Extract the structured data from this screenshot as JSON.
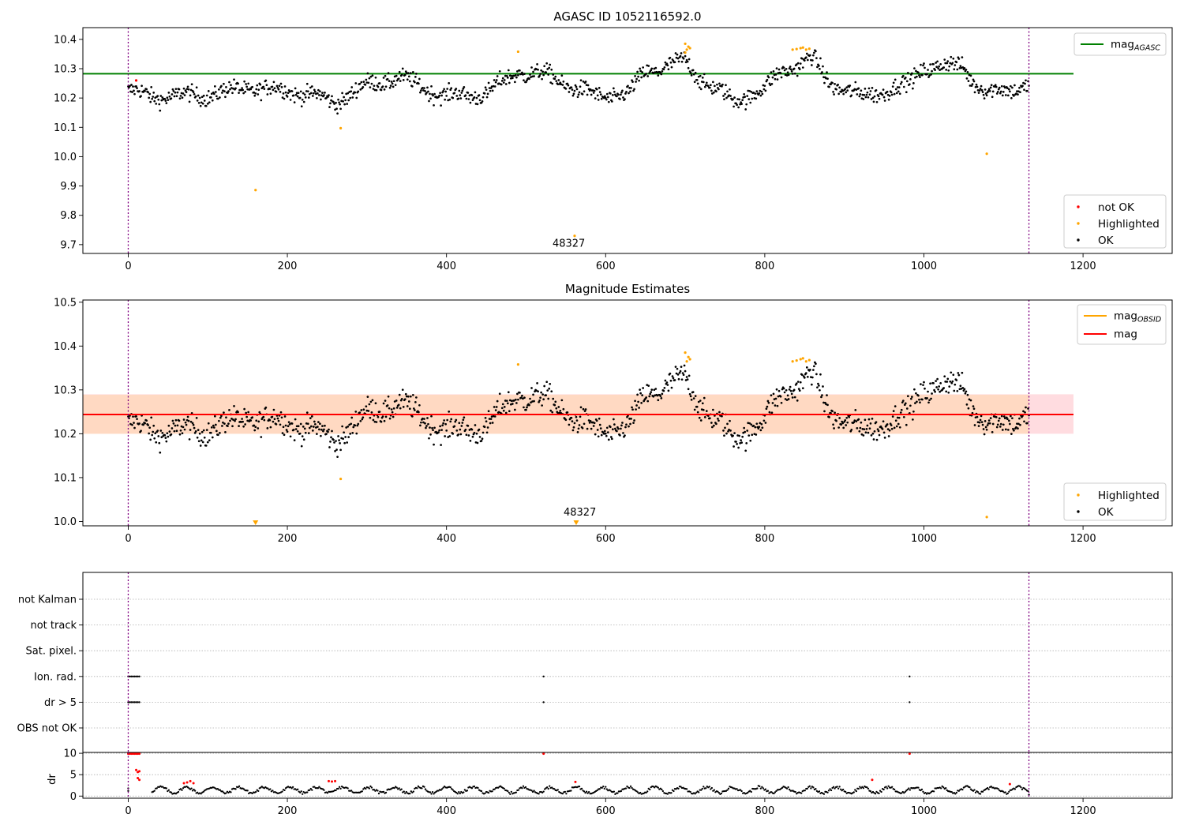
{
  "chart_data": [
    {
      "id": "top",
      "type": "scatter",
      "title": "AGASC ID 1052116592.0",
      "xlim": [
        -57,
        1312
      ],
      "ylim": [
        9.67,
        10.44
      ],
      "x_ticks": [
        0,
        200,
        400,
        600,
        800,
        1000,
        1200
      ],
      "y_ticks": [
        9.7,
        9.8,
        9.9,
        10.0,
        10.1,
        10.2,
        10.3,
        10.4
      ],
      "y_tick_labels": [
        "9.7",
        "9.8",
        "9.9",
        "10.0",
        "10.1",
        "10.2",
        "10.3",
        "10.4"
      ],
      "vlines": [
        0,
        1132
      ],
      "hline": {
        "y": 10.283,
        "x_range": [
          -57,
          1188
        ],
        "color": "#008000"
      },
      "annotation": {
        "text": "48327",
        "x": 563,
        "y": 9.73
      },
      "legend_upper": [
        {
          "label": "mag",
          "sub": "AGASC",
          "color": "#008000"
        }
      ],
      "legend_lower": [
        {
          "label": "not OK",
          "color": "#ff0000"
        },
        {
          "label": "Highlighted",
          "color": "#ffa500"
        },
        {
          "label": "OK",
          "color": "#000000"
        }
      ],
      "segments": [
        [
          0,
          30,
          10.225,
          10.205
        ],
        [
          30,
          100,
          10.205,
          10.21
        ],
        [
          100,
          150,
          10.21,
          10.235
        ],
        [
          150,
          200,
          10.235,
          10.225
        ],
        [
          200,
          225,
          10.225,
          10.215
        ],
        [
          225,
          260,
          10.215,
          10.185
        ],
        [
          260,
          300,
          10.185,
          10.245
        ],
        [
          300,
          340,
          10.245,
          10.27
        ],
        [
          340,
          400,
          10.27,
          10.205
        ],
        [
          400,
          450,
          10.205,
          10.215
        ],
        [
          450,
          490,
          10.215,
          10.29
        ],
        [
          490,
          530,
          10.29,
          10.275
        ],
        [
          530,
          560,
          10.275,
          10.235
        ],
        [
          560,
          590,
          10.235,
          10.205
        ],
        [
          590,
          630,
          10.205,
          10.215
        ],
        [
          630,
          650,
          10.215,
          10.29
        ],
        [
          650,
          700,
          10.29,
          10.325
        ],
        [
          700,
          720,
          10.325,
          10.265
        ],
        [
          720,
          760,
          10.265,
          10.19
        ],
        [
          760,
          800,
          10.19,
          10.23
        ],
        [
          800,
          820,
          10.23,
          10.29
        ],
        [
          820,
          860,
          10.29,
          10.335
        ],
        [
          860,
          880,
          10.335,
          10.255
        ],
        [
          880,
          920,
          10.255,
          10.205
        ],
        [
          920,
          980,
          10.205,
          10.245
        ],
        [
          980,
          1000,
          10.245,
          10.305
        ],
        [
          1000,
          1050,
          10.305,
          10.31
        ],
        [
          1050,
          1060,
          10.31,
          10.265
        ],
        [
          1060,
          1080,
          10.265,
          10.215
        ],
        [
          1080,
          1132,
          10.215,
          10.245
        ]
      ],
      "noise": 0.028,
      "highlighted": [
        [
          490,
          10.358
        ],
        [
          267,
          10.097
        ],
        [
          160,
          9.886
        ],
        [
          1079,
          10.01
        ],
        [
          561,
          9.73
        ],
        [
          700,
          10.385
        ],
        [
          702,
          10.365
        ],
        [
          704,
          10.375
        ],
        [
          706,
          10.37
        ],
        [
          700,
          10.355
        ],
        [
          835,
          10.365
        ],
        [
          840,
          10.367
        ],
        [
          845,
          10.37
        ],
        [
          848,
          10.372
        ],
        [
          852,
          10.365
        ],
        [
          856,
          10.368
        ]
      ],
      "not_ok": [
        [
          10,
          10.26
        ]
      ]
    },
    {
      "id": "middle",
      "type": "scatter",
      "title": "Magnitude Estimates",
      "xlim": [
        -57,
        1312
      ],
      "ylim": [
        9.99,
        10.505
      ],
      "x_ticks": [
        0,
        200,
        400,
        600,
        800,
        1000,
        1200
      ],
      "y_ticks": [
        10.0,
        10.1,
        10.2,
        10.3,
        10.4,
        10.5
      ],
      "y_tick_labels": [
        "10.0",
        "10.1",
        "10.2",
        "10.3",
        "10.4",
        "10.5"
      ],
      "vlines": [
        0,
        1132
      ],
      "band_pink": {
        "y": [
          10.2,
          10.29
        ],
        "x_range": [
          -57,
          1188
        ],
        "color": "#ffdce0"
      },
      "band_orange": {
        "y": [
          10.2,
          10.289
        ],
        "x_range": [
          -57,
          1132
        ],
        "color": "#ffd9c2"
      },
      "mag_line": {
        "y": 10.244,
        "x_range": [
          -57,
          1188
        ],
        "color": "#ff0000"
      },
      "annotation": {
        "text": "48327",
        "x": 563,
        "y": 10.01
      },
      "legend_upper": [
        {
          "label": "mag",
          "sub": "OBSID",
          "color": "#ffa500"
        },
        {
          "label": "mag",
          "sub": "",
          "color": "#ff0000"
        }
      ],
      "legend_lower": [
        {
          "label": "Highlighted",
          "color": "#ffa500"
        },
        {
          "label": "OK",
          "color": "#000000"
        }
      ],
      "triangles": [
        [
          160,
          9.997
        ],
        [
          563,
          9.997
        ]
      ],
      "highlighted": [
        [
          490,
          10.358
        ],
        [
          267,
          10.097
        ],
        [
          1079,
          10.01
        ],
        [
          700,
          10.385
        ],
        [
          702,
          10.365
        ],
        [
          704,
          10.375
        ],
        [
          706,
          10.37
        ],
        [
          835,
          10.365
        ],
        [
          840,
          10.367
        ],
        [
          845,
          10.37
        ],
        [
          848,
          10.372
        ],
        [
          852,
          10.365
        ],
        [
          856,
          10.368
        ]
      ]
    },
    {
      "id": "flags",
      "type": "scatter",
      "xlim": [
        -57,
        1312
      ],
      "categories": [
        "not Kalman",
        "not track",
        "Sat. pixel.",
        "Ion. rad.",
        "dr > 5",
        "OBS not OK"
      ],
      "flag_points": {
        "Ion. rad.": [
          0,
          2,
          4,
          6,
          8,
          10,
          12,
          14,
          522,
          982
        ],
        "dr > 5": [
          0,
          2,
          4,
          6,
          8,
          10,
          12,
          14,
          522,
          982
        ]
      },
      "vlines": [
        0,
        1132
      ]
    },
    {
      "id": "dr",
      "type": "scatter",
      "ylabel": "dr",
      "xlim": [
        -57,
        1312
      ],
      "ylim": [
        -0.5,
        10.2
      ],
      "x_ticks": [
        0,
        200,
        400,
        600,
        800,
        1000,
        1200
      ],
      "y_ticks": [
        0,
        5,
        10
      ],
      "y_tick_labels": [
        "0",
        "5",
        "10"
      ],
      "vlines": [
        0,
        1132
      ],
      "red_points": [
        [
          0,
          9.9
        ],
        [
          2,
          9.9
        ],
        [
          4,
          9.9
        ],
        [
          6,
          9.9
        ],
        [
          8,
          9.9
        ],
        [
          10,
          9.9
        ],
        [
          12,
          9.9
        ],
        [
          14,
          9.9
        ],
        [
          522,
          9.9
        ],
        [
          982,
          9.9
        ],
        [
          10,
          6.1
        ],
        [
          12,
          5.6
        ],
        [
          14,
          5.8
        ],
        [
          12,
          4.2
        ],
        [
          14,
          3.8
        ],
        [
          70,
          3.0
        ],
        [
          74,
          3.2
        ],
        [
          78,
          3.5
        ],
        [
          82,
          3.0
        ],
        [
          252,
          3.5
        ],
        [
          256,
          3.4
        ],
        [
          260,
          3.5
        ],
        [
          562,
          3.3
        ],
        [
          935,
          3.8
        ],
        [
          1108,
          2.8
        ]
      ]
    }
  ]
}
